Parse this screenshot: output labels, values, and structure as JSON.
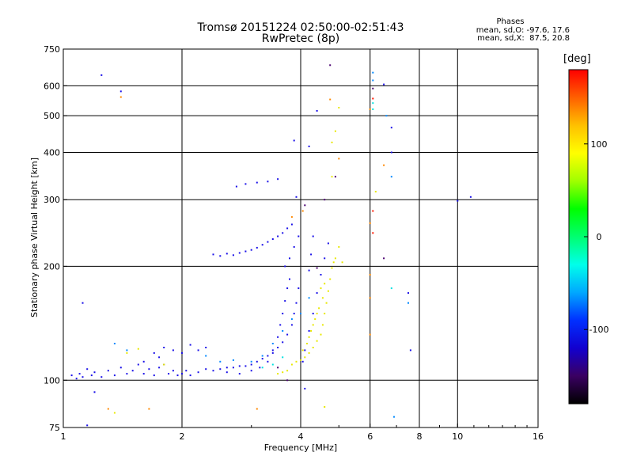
{
  "header": {
    "title": "Tromsø 20151224 02:50:00-02:51:43",
    "subtitle": "RwPretec (8p)",
    "phase_title": "Phases",
    "phase_o": "mean, sd,O: -97.6, 17.6",
    "phase_x": "mean, sd,X:  87.5, 20.8"
  },
  "colorbar": {
    "unit": "[deg]",
    "ticks": [
      {
        "value": 100,
        "label": "100"
      },
      {
        "value": 0,
        "label": "0"
      },
      {
        "value": -100,
        "label": "-100"
      }
    ],
    "range": [
      -180,
      180
    ],
    "colors": [
      "#000000",
      "#3a0062",
      "#1200cf",
      "#0030ff",
      "#00a8ff",
      "#00ffea",
      "#00ff70",
      "#00ff00",
      "#a0ff00",
      "#ffff00",
      "#ffc000",
      "#ff6000",
      "#ff0000"
    ]
  },
  "chart_data": {
    "type": "scatter",
    "xlabel": "Frequency [MHz]",
    "ylabel": "Stationary phase Virtual Height [km]",
    "xscale": "log",
    "yscale": "log",
    "xlim": [
      1,
      16
    ],
    "ylim": [
      75,
      750
    ],
    "xticks": [
      {
        "value": 1,
        "label": "1"
      },
      {
        "value": 2,
        "label": "2"
      },
      {
        "value": 4,
        "label": "4"
      },
      {
        "value": 6,
        "label": "6"
      },
      {
        "value": 8,
        "label": "8"
      },
      {
        "value": 10,
        "label": "10"
      },
      {
        "value": 16,
        "label": "16"
      }
    ],
    "yticks": [
      {
        "value": 75,
        "label": "75"
      },
      {
        "value": 100,
        "label": "100"
      },
      {
        "value": 200,
        "label": "200"
      },
      {
        "value": 300,
        "label": "300"
      },
      {
        "value": 400,
        "label": "400"
      },
      {
        "value": 500,
        "label": "500"
      },
      {
        "value": 600,
        "label": "600"
      },
      {
        "value": 750,
        "label": "750"
      }
    ],
    "grid": true,
    "series": [
      {
        "color": "#1a10e8",
        "points": [
          [
            1.05,
            103
          ],
          [
            1.08,
            101
          ],
          [
            1.1,
            104
          ],
          [
            1.12,
            102
          ],
          [
            1.15,
            107
          ],
          [
            1.18,
            103
          ],
          [
            1.2,
            105
          ],
          [
            1.25,
            102
          ],
          [
            1.3,
            106
          ],
          [
            1.35,
            103
          ],
          [
            1.4,
            108
          ],
          [
            1.45,
            104
          ],
          [
            1.5,
            106
          ],
          [
            1.55,
            110
          ],
          [
            1.6,
            104
          ],
          [
            1.65,
            107
          ],
          [
            1.7,
            103
          ],
          [
            1.75,
            108
          ],
          [
            1.8,
            110
          ],
          [
            1.85,
            104
          ],
          [
            1.9,
            106
          ],
          [
            1.95,
            103
          ],
          [
            2.0,
            104
          ],
          [
            2.05,
            106
          ],
          [
            2.1,
            103
          ],
          [
            2.2,
            105
          ],
          [
            2.3,
            107
          ],
          [
            2.4,
            106
          ],
          [
            2.5,
            107
          ],
          [
            2.6,
            108
          ],
          [
            2.7,
            108
          ],
          [
            2.8,
            109
          ],
          [
            2.9,
            109
          ],
          [
            3.0,
            110
          ],
          [
            3.1,
            112
          ],
          [
            3.2,
            114
          ],
          [
            3.3,
            116
          ],
          [
            3.4,
            118
          ],
          [
            3.5,
            122
          ],
          [
            3.6,
            126
          ],
          [
            3.7,
            132
          ],
          [
            3.8,
            140
          ],
          [
            3.85,
            150
          ],
          [
            3.9,
            160
          ],
          [
            3.95,
            175
          ],
          [
            1.7,
            118
          ],
          [
            1.8,
            122
          ],
          [
            1.9,
            120
          ],
          [
            2.0,
            118
          ],
          [
            2.1,
            124
          ],
          [
            2.2,
            120
          ],
          [
            2.3,
            122
          ],
          [
            1.6,
            112
          ],
          [
            1.75,
            115
          ],
          [
            2.4,
            215
          ],
          [
            2.5,
            213
          ],
          [
            2.6,
            216
          ],
          [
            2.7,
            214
          ],
          [
            2.8,
            217
          ],
          [
            2.9,
            219
          ],
          [
            3.0,
            221
          ],
          [
            3.1,
            224
          ],
          [
            3.2,
            228
          ],
          [
            3.3,
            232
          ],
          [
            3.4,
            236
          ],
          [
            3.5,
            240
          ],
          [
            3.6,
            245
          ],
          [
            3.7,
            252
          ],
          [
            3.8,
            258
          ],
          [
            2.75,
            325
          ],
          [
            2.9,
            330
          ],
          [
            3.1,
            333
          ],
          [
            3.3,
            335
          ],
          [
            3.5,
            340
          ],
          [
            3.9,
            305
          ],
          [
            3.85,
            430
          ],
          [
            4.2,
            415
          ],
          [
            4.4,
            515
          ],
          [
            6.8,
            400
          ],
          [
            6.8,
            465
          ],
          [
            6.5,
            605
          ],
          [
            1.4,
            580
          ],
          [
            1.25,
            640
          ],
          [
            1.12,
            160
          ],
          [
            3.15,
            108
          ],
          [
            3.3,
            112
          ],
          [
            3.4,
            120
          ],
          [
            3.5,
            130
          ],
          [
            3.55,
            140
          ],
          [
            3.6,
            150
          ],
          [
            3.65,
            162
          ],
          [
            3.7,
            175
          ],
          [
            3.75,
            185
          ],
          [
            4.05,
            112
          ],
          [
            4.1,
            120
          ],
          [
            4.2,
            135
          ],
          [
            4.3,
            150
          ],
          [
            4.4,
            170
          ],
          [
            4.5,
            190
          ],
          [
            4.6,
            210
          ],
          [
            4.7,
            230
          ],
          [
            4.3,
            240
          ],
          [
            4.25,
            215
          ],
          [
            4.2,
            195
          ],
          [
            3.95,
            240
          ],
          [
            3.85,
            225
          ],
          [
            3.75,
            210
          ],
          [
            3.65,
            200
          ],
          [
            7.6,
            120
          ],
          [
            7.5,
            170
          ],
          [
            10.0,
            298
          ],
          [
            10.8,
            305
          ],
          [
            4.1,
            95
          ],
          [
            1.2,
            93
          ],
          [
            1.15,
            76
          ],
          [
            2.6,
            105
          ],
          [
            2.8,
            104
          ],
          [
            3.0,
            106
          ]
        ]
      },
      {
        "color": "#0088ff",
        "points": [
          [
            1.35,
            125
          ],
          [
            1.45,
            120
          ],
          [
            2.3,
            116
          ],
          [
            2.5,
            112
          ],
          [
            2.7,
            113
          ],
          [
            3.0,
            112
          ],
          [
            3.2,
            116
          ],
          [
            3.4,
            125
          ],
          [
            3.6,
            135
          ],
          [
            3.8,
            145
          ],
          [
            4.0,
            150
          ],
          [
            4.2,
            165
          ],
          [
            6.1,
            650
          ],
          [
            6.1,
            620
          ],
          [
            6.6,
            500
          ],
          [
            6.8,
            345
          ],
          [
            6.9,
            80
          ],
          [
            7.5,
            160
          ]
        ]
      },
      {
        "color": "#00e0e0",
        "points": [
          [
            3.2,
            108
          ],
          [
            3.4,
            110
          ],
          [
            3.6,
            115
          ],
          [
            6.1,
            540
          ],
          [
            6.1,
            520
          ],
          [
            6.8,
            175
          ]
        ]
      },
      {
        "color": "#e8e800",
        "points": [
          [
            3.5,
            104
          ],
          [
            3.6,
            105
          ],
          [
            3.7,
            106
          ],
          [
            3.8,
            110
          ],
          [
            3.9,
            112
          ],
          [
            4.0,
            113
          ],
          [
            4.1,
            115
          ],
          [
            4.2,
            118
          ],
          [
            4.3,
            122
          ],
          [
            4.4,
            127
          ],
          [
            4.5,
            132
          ],
          [
            4.55,
            140
          ],
          [
            4.6,
            150
          ],
          [
            4.65,
            160
          ],
          [
            4.7,
            172
          ],
          [
            4.75,
            185
          ],
          [
            4.8,
            198
          ],
          [
            4.85,
            205
          ],
          [
            4.9,
            210
          ],
          [
            4.05,
            120
          ],
          [
            4.15,
            125
          ],
          [
            4.25,
            135
          ],
          [
            4.35,
            145
          ],
          [
            4.45,
            155
          ],
          [
            4.55,
            165
          ],
          [
            4.6,
            180
          ],
          [
            4.3,
            140
          ],
          [
            4.4,
            150
          ],
          [
            4.2,
            130
          ],
          [
            4.5,
            175
          ],
          [
            5.0,
            225
          ],
          [
            5.1,
            205
          ],
          [
            4.8,
            425
          ],
          [
            4.9,
            455
          ],
          [
            5.0,
            525
          ],
          [
            4.8,
            345
          ],
          [
            4.6,
            85
          ],
          [
            1.45,
            118
          ],
          [
            1.55,
            121
          ],
          [
            1.35,
            82
          ],
          [
            1.8,
            110
          ],
          [
            6.2,
            315
          ]
        ]
      },
      {
        "color": "#ff8800",
        "points": [
          [
            1.4,
            560
          ],
          [
            4.75,
            552
          ],
          [
            5.0,
            385
          ],
          [
            6.0,
            520
          ],
          [
            6.0,
            260
          ],
          [
            6.0,
            190
          ],
          [
            6.0,
            165
          ],
          [
            6.0,
            132
          ],
          [
            3.8,
            270
          ],
          [
            4.05,
            280
          ],
          [
            6.5,
            370
          ],
          [
            1.65,
            84
          ],
          [
            1.3,
            84
          ],
          [
            3.1,
            84
          ]
        ]
      },
      {
        "color": "#ff1800",
        "points": [
          [
            6.1,
            555
          ],
          [
            6.1,
            280
          ],
          [
            6.1,
            245
          ]
        ]
      },
      {
        "color": "#4a0070",
        "points": [
          [
            3.5,
            108
          ],
          [
            3.7,
            100
          ],
          [
            4.1,
            290
          ],
          [
            4.4,
            198
          ],
          [
            4.6,
            300
          ],
          [
            4.75,
            680
          ],
          [
            4.9,
            345
          ],
          [
            6.1,
            590
          ],
          [
            6.5,
            210
          ]
        ]
      }
    ]
  }
}
